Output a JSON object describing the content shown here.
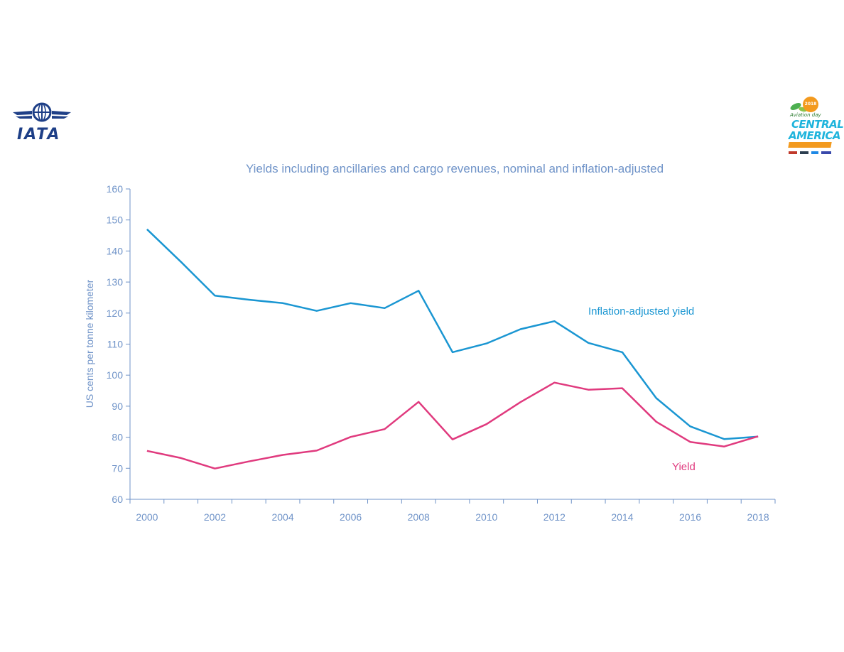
{
  "logos": {
    "left": {
      "text": "IATA",
      "icon": "iata-globe-wings-icon"
    },
    "right": {
      "line1": "Aviation day",
      "line2": "CENTRAL",
      "line3": "AMERICA",
      "badge": "2018",
      "icon": "aviation-day-central-america-logo"
    }
  },
  "colors": {
    "inflation_adjusted": "#1a96d2",
    "yield": "#e03a7e",
    "axis": "#6f93c8"
  },
  "chart_data": {
    "type": "line",
    "title": "Yields including ancillaries and cargo revenues, nominal and inflation-adjusted",
    "xlabel": "",
    "ylabel": "US cents per tonne kilometer",
    "xlim": [
      1999.5,
      2018.5
    ],
    "ylim": [
      60,
      160
    ],
    "yticks": [
      60,
      70,
      80,
      90,
      100,
      110,
      120,
      130,
      140,
      150,
      160
    ],
    "xtick_labels": [
      "2000",
      "2002",
      "2004",
      "2006",
      "2008",
      "2010",
      "2012",
      "2014",
      "2016",
      "2018"
    ],
    "x": [
      2000,
      2001,
      2002,
      2003,
      2004,
      2005,
      2006,
      2007,
      2008,
      2009,
      2010,
      2011,
      2012,
      2013,
      2014,
      2015,
      2016,
      2017,
      2018
    ],
    "grid": false,
    "series": [
      {
        "name": "Inflation-adjusted yield",
        "values": [
          147,
          136.5,
          125.6,
          124.3,
          123.2,
          120.7,
          123.2,
          121.6,
          127.2,
          107.4,
          110.2,
          114.8,
          117.4,
          110.4,
          107.4,
          92.6,
          83.5,
          79.4,
          80.2
        ]
      },
      {
        "name": "Yield",
        "values": [
          75.6,
          73.3,
          69.9,
          72.2,
          74.3,
          75.7,
          80.1,
          82.6,
          91.4,
          79.3,
          84.2,
          91.3,
          97.6,
          95.3,
          95.8,
          85.0,
          78.5,
          77.0,
          80.3
        ]
      }
    ]
  }
}
